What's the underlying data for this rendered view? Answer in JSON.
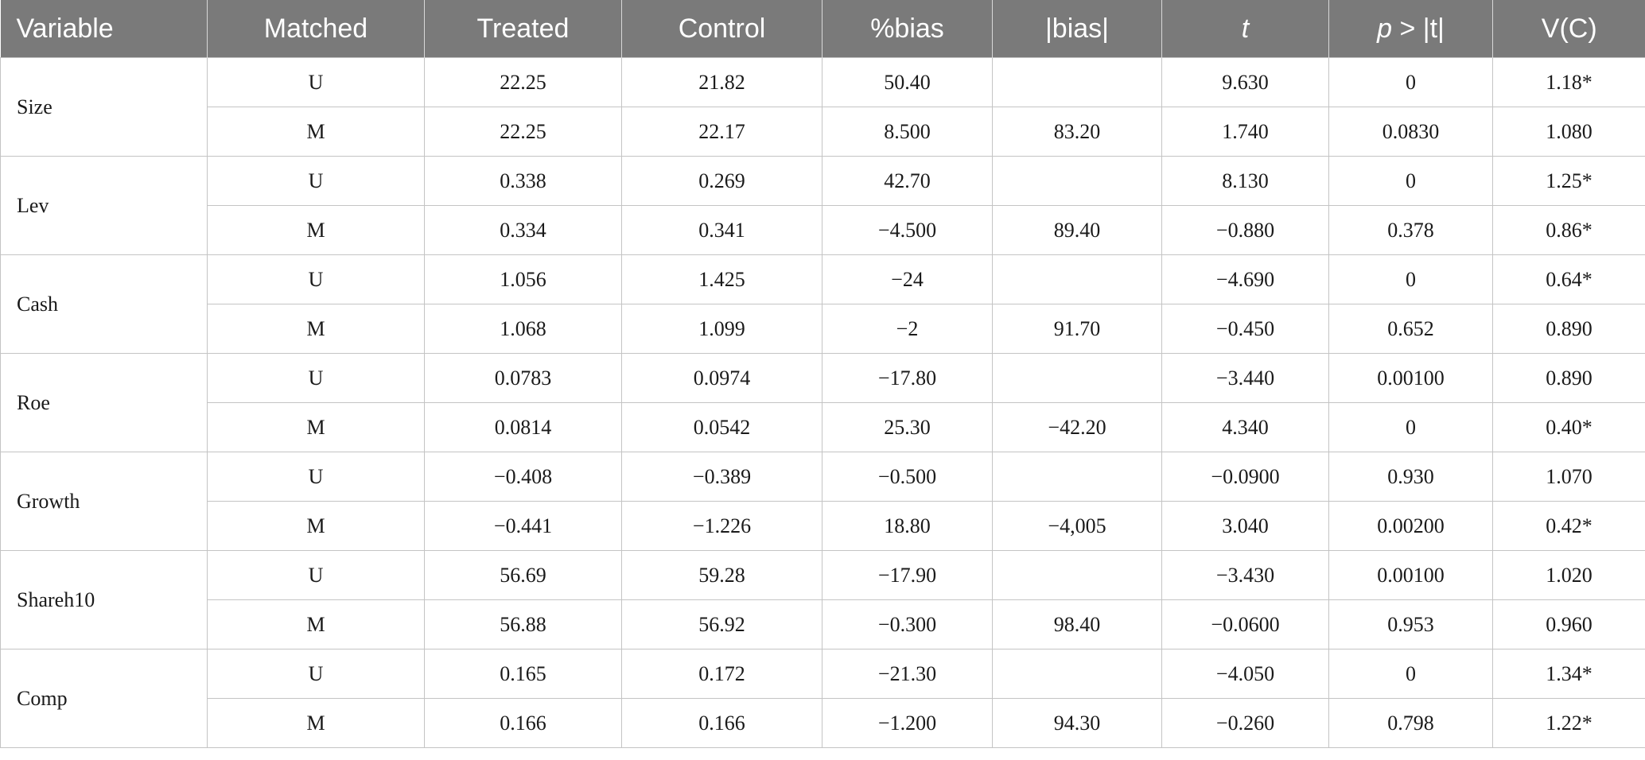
{
  "headers": [
    "Variable",
    "Matched",
    "Treated",
    "Control",
    "%bias",
    "|bias|",
    "t",
    "p > |t|",
    "V(C)"
  ],
  "rows": [
    {
      "variable": "Size",
      "u": [
        "U",
        "22.25",
        "21.82",
        "50.40",
        "",
        "9.630",
        "0",
        "1.18*"
      ],
      "m": [
        "M",
        "22.25",
        "22.17",
        "8.500",
        "83.20",
        "1.740",
        "0.0830",
        "1.080"
      ]
    },
    {
      "variable": "Lev",
      "u": [
        "U",
        "0.338",
        "0.269",
        "42.70",
        "",
        "8.130",
        "0",
        "1.25*"
      ],
      "m": [
        "M",
        "0.334",
        "0.341",
        "−4.500",
        "89.40",
        "−0.880",
        "0.378",
        "0.86*"
      ]
    },
    {
      "variable": "Cash",
      "u": [
        "U",
        "1.056",
        "1.425",
        "−24",
        "",
        "−4.690",
        "0",
        "0.64*"
      ],
      "m": [
        "M",
        "1.068",
        "1.099",
        "−2",
        "91.70",
        "−0.450",
        "0.652",
        "0.890"
      ]
    },
    {
      "variable": "Roe",
      "u": [
        "U",
        "0.0783",
        "0.0974",
        "−17.80",
        "",
        "−3.440",
        "0.00100",
        "0.890"
      ],
      "m": [
        "M",
        "0.0814",
        "0.0542",
        "25.30",
        "−42.20",
        "4.340",
        "0",
        "0.40*"
      ]
    },
    {
      "variable": "Growth",
      "u": [
        "U",
        "−0.408",
        "−0.389",
        "−0.500",
        "",
        "−0.0900",
        "0.930",
        "1.070"
      ],
      "m": [
        "M",
        "−0.441",
        "−1.226",
        "18.80",
        "−4,005",
        "3.040",
        "0.00200",
        "0.42*"
      ]
    },
    {
      "variable": "Shareh10",
      "u": [
        "U",
        "56.69",
        "59.28",
        "−17.90",
        "",
        "−3.430",
        "0.00100",
        "1.020"
      ],
      "m": [
        "M",
        "56.88",
        "56.92",
        "−0.300",
        "98.40",
        "−0.0600",
        "0.953",
        "0.960"
      ]
    },
    {
      "variable": "Comp",
      "u": [
        "U",
        "0.165",
        "0.172",
        "−21.30",
        "",
        "−4.050",
        "0",
        "1.34*"
      ],
      "m": [
        "M",
        "0.166",
        "0.166",
        "−1.200",
        "94.30",
        "−0.260",
        "0.798",
        "1.22*"
      ]
    }
  ]
}
